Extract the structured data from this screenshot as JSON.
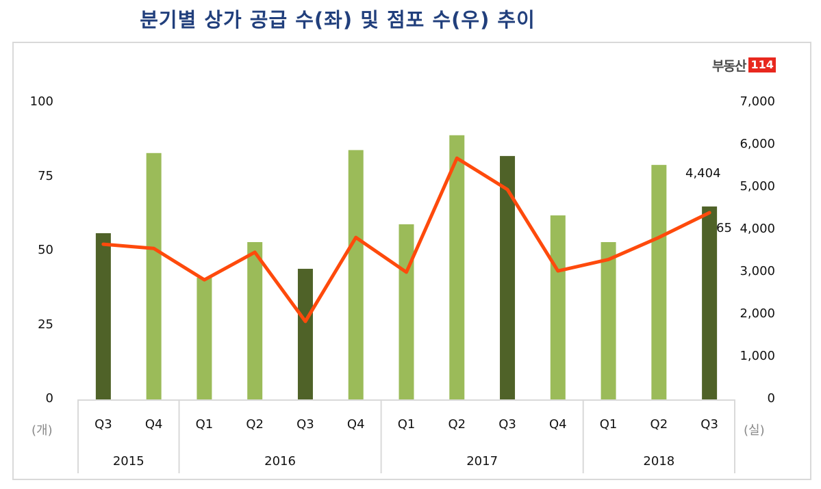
{
  "title": "분기별 상가 공급 수(좌) 및 점포 수(우) 추이",
  "logo": {
    "text": "부동산",
    "badge": "114"
  },
  "units": {
    "left": "(개)",
    "right": "(실)"
  },
  "colors": {
    "bar_dark": "#4f6228",
    "bar_light": "#9bbb59",
    "line": "#fe4a0c",
    "title": "#213f7c"
  },
  "annotations": {
    "line_last": "4,404",
    "bar_last": "65"
  },
  "chart_data": {
    "type": "bar",
    "title": "분기별 상가 공급 수(좌) 및 점포 수(우) 추이",
    "xlabel": "",
    "ylabel": "(개)",
    "y2label": "(실)",
    "categories": [
      "2015 Q3",
      "2015 Q4",
      "2016 Q1",
      "2016 Q2",
      "2016 Q3",
      "2016 Q4",
      "2017 Q1",
      "2017 Q2",
      "2017 Q3",
      "2017 Q4",
      "2018 Q1",
      "2018 Q2",
      "2018 Q3"
    ],
    "quarters": [
      "Q3",
      "Q4",
      "Q1",
      "Q2",
      "Q3",
      "Q4",
      "Q1",
      "Q2",
      "Q3",
      "Q4",
      "Q1",
      "Q2",
      "Q3"
    ],
    "years": [
      {
        "label": "2015",
        "span": 2
      },
      {
        "label": "2016",
        "span": 4
      },
      {
        "label": "2017",
        "span": 4
      },
      {
        "label": "2018",
        "span": 3
      }
    ],
    "series": [
      {
        "name": "상가 공급 수",
        "type": "bar",
        "axis": "left",
        "values": [
          56,
          83,
          41,
          53,
          44,
          84,
          59,
          89,
          82,
          62,
          53,
          79,
          65
        ],
        "highlight_q3": true
      },
      {
        "name": "점포 수",
        "type": "line",
        "axis": "right",
        "values": [
          3660,
          3560,
          2820,
          3470,
          1840,
          3820,
          3000,
          5690,
          4950,
          3030,
          3300,
          3820,
          4404
        ]
      }
    ],
    "ylim": [
      0,
      100
    ],
    "y2lim": [
      0,
      7000
    ],
    "yticks": [
      "100",
      "75",
      "50",
      "25",
      "0"
    ],
    "y2ticks": [
      "7,000",
      "6,000",
      "5,000",
      "4,000",
      "3,000",
      "2,000",
      "1,000",
      "0"
    ],
    "grid": false,
    "legend": "none"
  }
}
